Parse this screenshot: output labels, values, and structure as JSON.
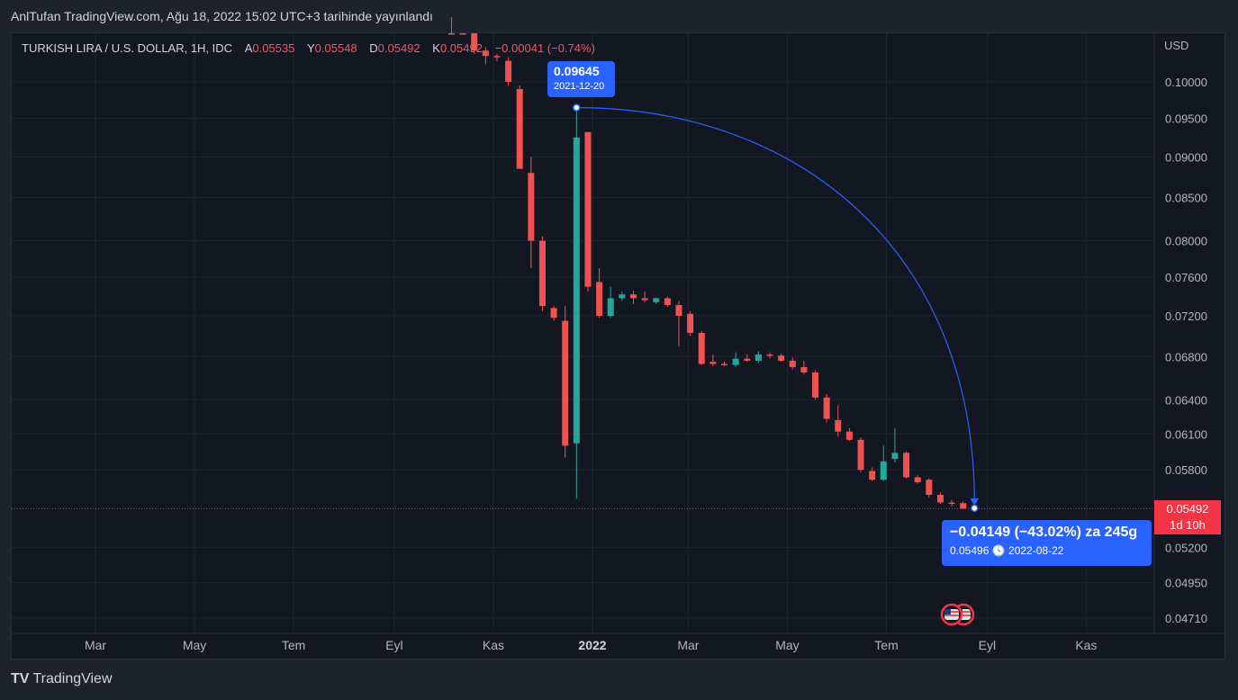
{
  "header": {
    "caption": "AnlTufan TradingView.com, Ağu 18, 2022 15:02 UTC+3 tarihinde yayınlandı"
  },
  "legend": {
    "symbol": "TURKISH LIRA / U.S. DOLLAR, 1H, IDC",
    "o_label": "A",
    "o_value": "0.05535",
    "h_label": "Y",
    "h_value": "0.05548",
    "l_label": "D",
    "l_value": "0.05492",
    "c_label": "K",
    "c_value": "0.05492",
    "change": "−0.00041 (−0.74%)"
  },
  "price_axis": {
    "unit": "USD"
  },
  "last_price": {
    "value": "0.05492",
    "countdown": "1d 10h"
  },
  "measure": {
    "start_price": "0.09645",
    "start_date": "2021-12-20",
    "result": "−0.04149 (−43.02%) za 245g",
    "end_price": "0.05496",
    "end_date": "2022-08-22"
  },
  "branding": {
    "name": "TradingView"
  },
  "colors": {
    "up": "#26a69a",
    "down": "#ef5350",
    "background": "#131722",
    "accent": "#2962ff"
  },
  "chart_data": {
    "type": "candlestick",
    "scale": "log",
    "y_ticks": [
      0.1,
      0.095,
      0.09,
      0.085,
      0.08,
      0.076,
      0.072,
      0.068,
      0.064,
      0.061,
      0.058,
      0.052,
      0.0495,
      0.0471
    ],
    "y_tick_labels": [
      "0.10000",
      "0.09500",
      "0.09000",
      "0.08500",
      "0.08000",
      "0.07600",
      "0.07200",
      "0.06800",
      "0.06400",
      "0.06100",
      "0.05800",
      "0.05200",
      "0.04950",
      "0.04710"
    ],
    "x_ticks": [
      {
        "label": "Mar",
        "date": "2021-03-01",
        "bold": false
      },
      {
        "label": "May",
        "date": "2021-05-01",
        "bold": false
      },
      {
        "label": "Tem",
        "date": "2021-07-01",
        "bold": false
      },
      {
        "label": "Eyl",
        "date": "2021-09-01",
        "bold": false
      },
      {
        "label": "Kas",
        "date": "2021-11-01",
        "bold": false
      },
      {
        "label": "2022",
        "date": "2022-01-01",
        "bold": true
      },
      {
        "label": "Mar",
        "date": "2022-03-01",
        "bold": false
      },
      {
        "label": "May",
        "date": "2022-05-01",
        "bold": false
      },
      {
        "label": "Tem",
        "date": "2022-07-01",
        "bold": false
      },
      {
        "label": "Eyl",
        "date": "2022-09-01",
        "bold": false
      },
      {
        "label": "Kas",
        "date": "2022-11-01",
        "bold": false
      }
    ],
    "candles": [
      {
        "date": "2021-10-04",
        "open": 0.112,
        "high": 0.1135,
        "low": 0.1095,
        "close": 0.1105
      },
      {
        "date": "2021-10-11",
        "open": 0.1105,
        "high": 0.111,
        "low": 0.107,
        "close": 0.108
      },
      {
        "date": "2021-10-18",
        "open": 0.108,
        "high": 0.1085,
        "low": 0.104,
        "close": 0.1045
      },
      {
        "date": "2021-10-25",
        "open": 0.1045,
        "high": 0.105,
        "low": 0.1025,
        "close": 0.1037
      },
      {
        "date": "2021-11-01",
        "open": 0.1037,
        "high": 0.104,
        "low": 0.103,
        "close": 0.1035
      },
      {
        "date": "2021-11-08",
        "open": 0.103,
        "high": 0.1035,
        "low": 0.0995,
        "close": 0.1
      },
      {
        "date": "2021-11-15",
        "open": 0.099,
        "high": 0.0995,
        "low": 0.0885,
        "close": 0.0885
      },
      {
        "date": "2021-11-22",
        "open": 0.088,
        "high": 0.09,
        "low": 0.077,
        "close": 0.08
      },
      {
        "date": "2021-11-29",
        "open": 0.08,
        "high": 0.0805,
        "low": 0.0725,
        "close": 0.073
      },
      {
        "date": "2021-12-06",
        "open": 0.0728,
        "high": 0.073,
        "low": 0.0715,
        "close": 0.0718
      },
      {
        "date": "2021-12-13",
        "open": 0.0715,
        "high": 0.073,
        "low": 0.059,
        "close": 0.06
      },
      {
        "date": "2021-12-20",
        "open": 0.0602,
        "high": 0.09645,
        "low": 0.0557,
        "close": 0.0925
      },
      {
        "date": "2021-12-27",
        "open": 0.0932,
        "high": 0.0932,
        "low": 0.0745,
        "close": 0.075
      },
      {
        "date": "2022-01-03",
        "open": 0.0755,
        "high": 0.077,
        "low": 0.0718,
        "close": 0.072
      },
      {
        "date": "2022-01-10",
        "open": 0.072,
        "high": 0.075,
        "low": 0.0718,
        "close": 0.0738
      },
      {
        "date": "2022-01-17",
        "open": 0.0738,
        "high": 0.0745,
        "low": 0.0735,
        "close": 0.0742
      },
      {
        "date": "2022-01-24",
        "open": 0.0742,
        "high": 0.0746,
        "low": 0.0732,
        "close": 0.0738
      },
      {
        "date": "2022-01-31",
        "open": 0.0738,
        "high": 0.0745,
        "low": 0.0734,
        "close": 0.0736
      },
      {
        "date": "2022-02-07",
        "open": 0.0734,
        "high": 0.0739,
        "low": 0.0732,
        "close": 0.0738
      },
      {
        "date": "2022-02-14",
        "open": 0.0738,
        "high": 0.074,
        "low": 0.0729,
        "close": 0.0731
      },
      {
        "date": "2022-02-21",
        "open": 0.0731,
        "high": 0.0735,
        "low": 0.069,
        "close": 0.072
      },
      {
        "date": "2022-02-28",
        "open": 0.0722,
        "high": 0.0725,
        "low": 0.07,
        "close": 0.0703
      },
      {
        "date": "2022-03-07",
        "open": 0.0703,
        "high": 0.0705,
        "low": 0.0672,
        "close": 0.0673
      },
      {
        "date": "2022-03-14",
        "open": 0.0675,
        "high": 0.0682,
        "low": 0.0671,
        "close": 0.0673
      },
      {
        "date": "2022-03-21",
        "open": 0.0673,
        "high": 0.0675,
        "low": 0.0671,
        "close": 0.0672
      },
      {
        "date": "2022-03-28",
        "open": 0.0672,
        "high": 0.0684,
        "low": 0.067,
        "close": 0.0678
      },
      {
        "date": "2022-04-04",
        "open": 0.0678,
        "high": 0.0682,
        "low": 0.0675,
        "close": 0.0676
      },
      {
        "date": "2022-04-11",
        "open": 0.0676,
        "high": 0.0685,
        "low": 0.0674,
        "close": 0.0682
      },
      {
        "date": "2022-04-18",
        "open": 0.0682,
        "high": 0.0684,
        "low": 0.0678,
        "close": 0.0681
      },
      {
        "date": "2022-04-25",
        "open": 0.0681,
        "high": 0.0683,
        "low": 0.0675,
        "close": 0.0676
      },
      {
        "date": "2022-05-02",
        "open": 0.0676,
        "high": 0.0679,
        "low": 0.0668,
        "close": 0.067
      },
      {
        "date": "2022-05-09",
        "open": 0.067,
        "high": 0.0676,
        "low": 0.0663,
        "close": 0.0665
      },
      {
        "date": "2022-05-16",
        "open": 0.0665,
        "high": 0.0667,
        "low": 0.064,
        "close": 0.0642
      },
      {
        "date": "2022-05-23",
        "open": 0.0642,
        "high": 0.0645,
        "low": 0.062,
        "close": 0.0623
      },
      {
        "date": "2022-05-30",
        "open": 0.0622,
        "high": 0.0635,
        "low": 0.0608,
        "close": 0.0612
      },
      {
        "date": "2022-06-06",
        "open": 0.0612,
        "high": 0.0615,
        "low": 0.0604,
        "close": 0.0605
      },
      {
        "date": "2022-06-13",
        "open": 0.0605,
        "high": 0.0607,
        "low": 0.0578,
        "close": 0.058
      },
      {
        "date": "2022-06-20",
        "open": 0.0579,
        "high": 0.0582,
        "low": 0.0571,
        "close": 0.0572
      },
      {
        "date": "2022-06-27",
        "open": 0.0572,
        "high": 0.06,
        "low": 0.0571,
        "close": 0.0587
      },
      {
        "date": "2022-07-04",
        "open": 0.0589,
        "high": 0.0615,
        "low": 0.0586,
        "close": 0.0594
      },
      {
        "date": "2022-07-11",
        "open": 0.0594,
        "high": 0.0595,
        "low": 0.0573,
        "close": 0.0574
      },
      {
        "date": "2022-07-18",
        "open": 0.0574,
        "high": 0.0576,
        "low": 0.0569,
        "close": 0.057
      },
      {
        "date": "2022-07-25",
        "open": 0.0572,
        "high": 0.0573,
        "low": 0.0558,
        "close": 0.056
      },
      {
        "date": "2022-08-01",
        "open": 0.056,
        "high": 0.0562,
        "low": 0.0553,
        "close": 0.0554
      },
      {
        "date": "2022-08-08",
        "open": 0.0554,
        "high": 0.0556,
        "low": 0.0551,
        "close": 0.0553
      },
      {
        "date": "2022-08-15",
        "open": 0.05535,
        "high": 0.05548,
        "low": 0.05492,
        "close": 0.05492
      }
    ]
  }
}
